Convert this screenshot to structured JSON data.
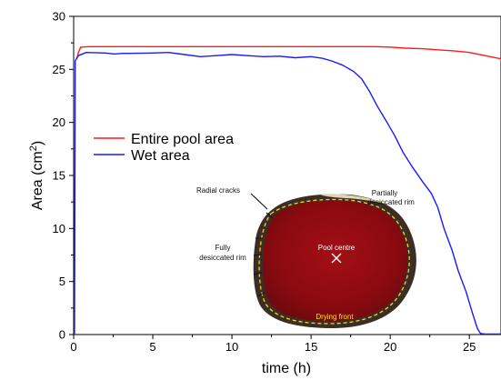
{
  "chart_data": {
    "type": "line",
    "xlabel": "time (h)",
    "ylabel_main": "Area (cm",
    "ylabel_sup": "2",
    "ylabel_close": ")",
    "xlim": [
      0,
      27
    ],
    "ylim": [
      0,
      30
    ],
    "x_ticks": [
      0,
      5,
      10,
      15,
      20,
      25
    ],
    "y_ticks": [
      0,
      5,
      10,
      15,
      20,
      25,
      30
    ],
    "grid": false,
    "legend_position": "upper-left",
    "series": [
      {
        "name": "Entire pool area",
        "color": "#ff1a1a",
        "points": [
          [
            0.2,
            26.0
          ],
          [
            0.3,
            26.6
          ],
          [
            0.45,
            27.1
          ],
          [
            1,
            27.15
          ],
          [
            5,
            27.15
          ],
          [
            10,
            27.15
          ],
          [
            15,
            27.15
          ],
          [
            19,
            27.15
          ],
          [
            20,
            27.1
          ],
          [
            21,
            27.0
          ],
          [
            22,
            26.95
          ],
          [
            23,
            26.85
          ],
          [
            24,
            26.75
          ],
          [
            25,
            26.6
          ],
          [
            26,
            26.3
          ],
          [
            27,
            26.0
          ]
        ]
      },
      {
        "name": "Wet area",
        "color": "#1a1aff",
        "points": [
          [
            0.05,
            0
          ],
          [
            0.1,
            25.8
          ],
          [
            0.3,
            26.3
          ],
          [
            0.8,
            26.6
          ],
          [
            2,
            26.55
          ],
          [
            2.6,
            26.45
          ],
          [
            3,
            26.5
          ],
          [
            5,
            26.55
          ],
          [
            6,
            26.6
          ],
          [
            7,
            26.4
          ],
          [
            8,
            26.2
          ],
          [
            9,
            26.3
          ],
          [
            10,
            26.4
          ],
          [
            11,
            26.3
          ],
          [
            12,
            26.2
          ],
          [
            13,
            26.25
          ],
          [
            14,
            26.1
          ],
          [
            15,
            26.2
          ],
          [
            15.7,
            26.05
          ],
          [
            16.3,
            25.8
          ],
          [
            17,
            25.4
          ],
          [
            17.7,
            24.8
          ],
          [
            18.2,
            24.1
          ],
          [
            18.7,
            22.9
          ],
          [
            19.2,
            21.5
          ],
          [
            19.8,
            20.0
          ],
          [
            20.3,
            18.7
          ],
          [
            20.8,
            17.2
          ],
          [
            21.4,
            15.8
          ],
          [
            22,
            14.5
          ],
          [
            22.6,
            13.3
          ],
          [
            23,
            12.0
          ],
          [
            23.4,
            10.0
          ],
          [
            23.9,
            8.0
          ],
          [
            24.3,
            6.0
          ],
          [
            24.8,
            4.0
          ],
          [
            25.2,
            2.0
          ],
          [
            25.5,
            0.6
          ],
          [
            25.7,
            0.1
          ],
          [
            26,
            0.05
          ],
          [
            27,
            0.05
          ]
        ]
      }
    ],
    "inset_annotations": {
      "radial_cracks": "Radial cracks",
      "partially_line1": "Partially",
      "partially_line2": "desiccated rim",
      "fully_line1": "Fully",
      "fully_line2": "desiccated rim",
      "pool_centre": "Pool centre",
      "drying_front": "Drying front"
    }
  }
}
